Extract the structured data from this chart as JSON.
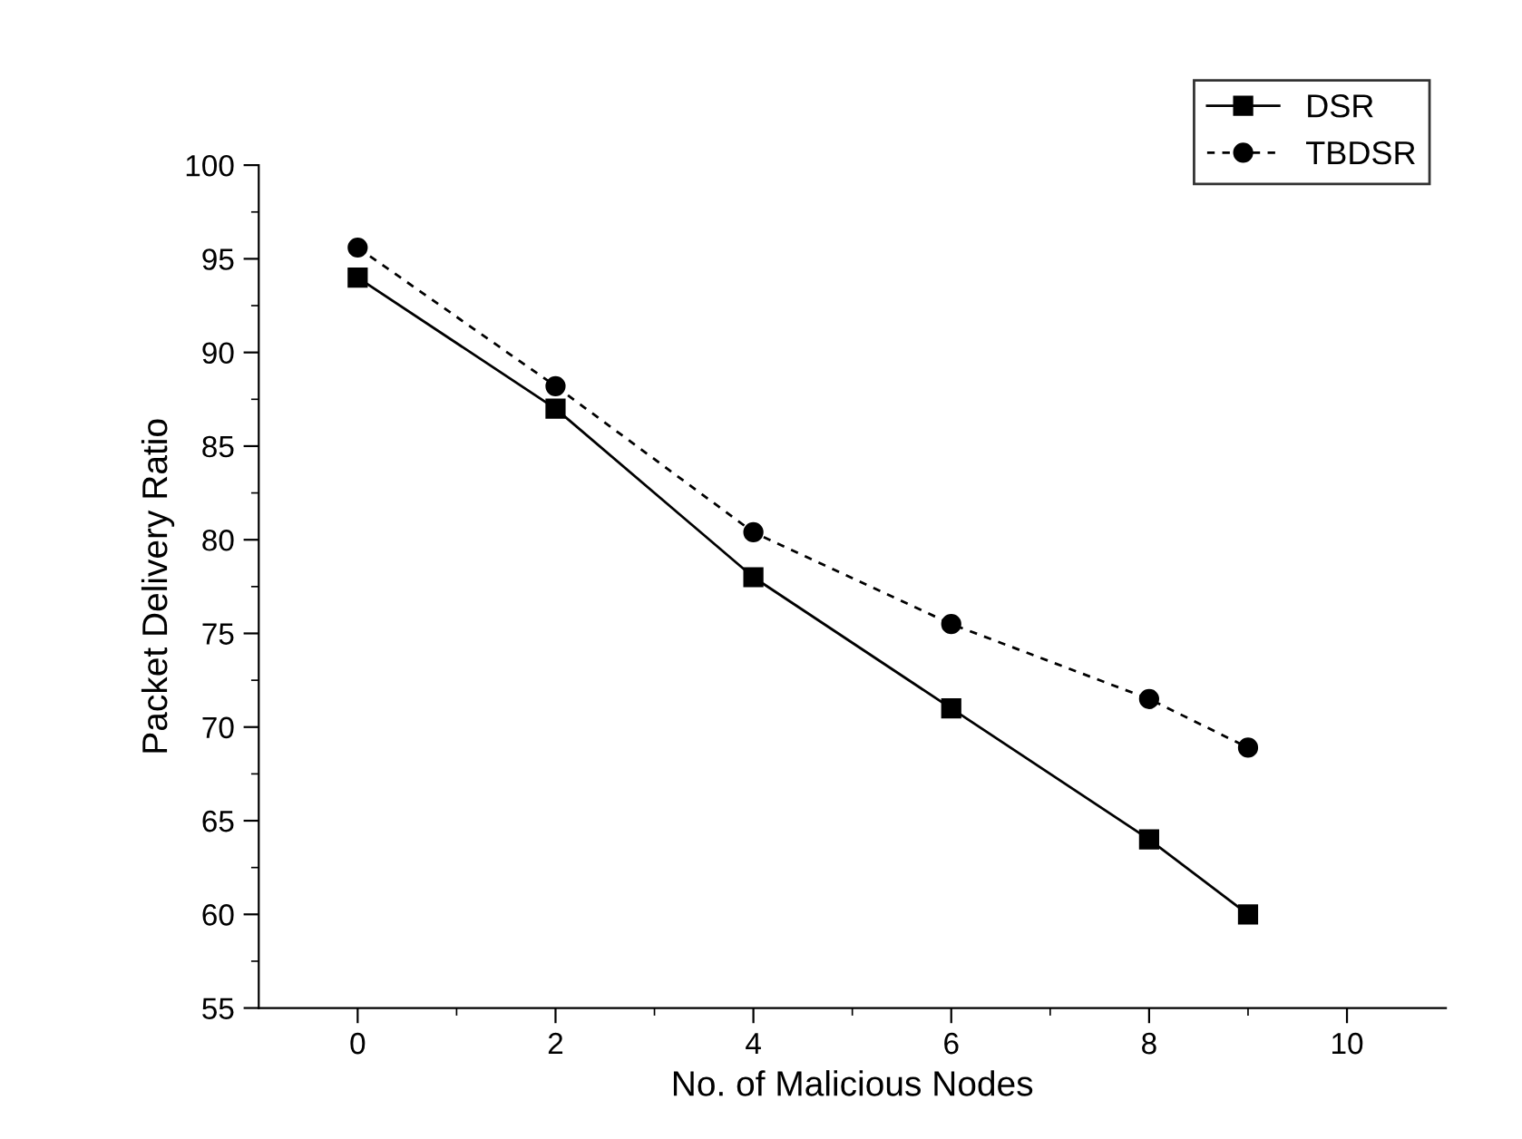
{
  "chart_data": {
    "type": "line",
    "xlabel": "No. of Malicious Nodes",
    "ylabel": "Packet Delivery Ratio",
    "x": [
      0,
      2,
      4,
      6,
      8,
      9
    ],
    "series": [
      {
        "name": "DSR",
        "color": "#000000",
        "values": [
          94,
          87,
          78,
          71,
          64,
          60
        ],
        "marker": "square",
        "line_style": "solid"
      },
      {
        "name": "TBDSR",
        "color": "#000000",
        "values": [
          95.6,
          88.2,
          80.4,
          75.5,
          71.5,
          68.9
        ],
        "marker": "circle",
        "line_style": "dashed"
      }
    ],
    "xlim": [
      -1,
      11
    ],
    "ylim": [
      55,
      100
    ],
    "xticks": [
      0,
      {
        "value": 1,
        "label": null
      },
      2,
      {
        "value": 3,
        "label": null
      },
      4,
      {
        "value": 5,
        "label": null
      },
      6,
      {
        "value": 7,
        "label": null
      },
      8,
      {
        "value": 9,
        "label": null
      },
      10
    ],
    "yticks": [
      55,
      {
        "value": 57.5,
        "label": null
      },
      60,
      {
        "value": 62.5,
        "label": null
      },
      65,
      {
        "value": 67.5,
        "label": null
      },
      70,
      {
        "value": 72.5,
        "label": null
      },
      75,
      {
        "value": 77.5,
        "label": null
      },
      80,
      {
        "value": 82.5,
        "label": null
      },
      85,
      {
        "value": 87.5,
        "label": null
      },
      90,
      {
        "value": 92.5,
        "label": null
      },
      95,
      {
        "value": 97.5,
        "label": null
      },
      100
    ],
    "grid": false,
    "legend": "top right"
  }
}
